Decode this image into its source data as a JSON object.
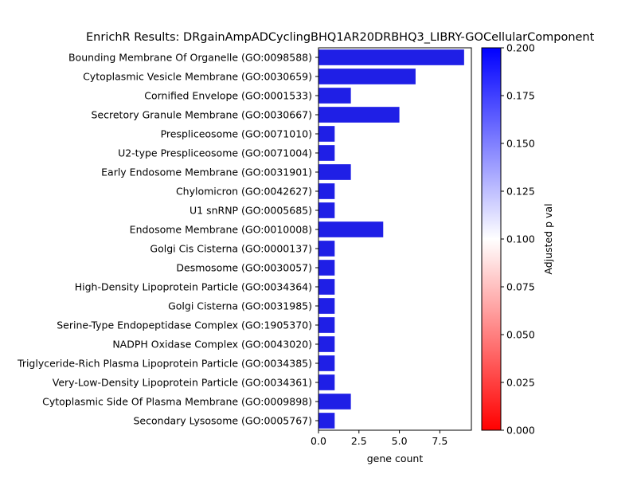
{
  "chart_data": {
    "type": "bar",
    "orientation": "horizontal",
    "title": "EnrichR Results: DRgainAmpADCyclingBHQ1AR20DRBHQ3_LIBRY-GOCellularComponent",
    "xlabel": "gene count",
    "ylabel": "",
    "xlim": [
      0,
      9.45
    ],
    "xticks": [
      0,
      2.5,
      5,
      7.5
    ],
    "xtick_labels": [
      "0.0",
      "2.5",
      "5.0",
      "7.5"
    ],
    "grid": false,
    "categories": [
      "Bounding Membrane Of Organelle (GO:0098588)",
      "Cytoplasmic Vesicle Membrane (GO:0030659)",
      "Cornified Envelope (GO:0001533)",
      "Secretory Granule Membrane (GO:0030667)",
      "Prespliceosome (GO:0071010)",
      "U2-type Prespliceosome (GO:0071004)",
      "Early Endosome Membrane (GO:0031901)",
      "Chylomicron (GO:0042627)",
      "U1 snRNP (GO:0005685)",
      "Endosome Membrane (GO:0010008)",
      "Golgi Cis Cisterna (GO:0000137)",
      "Desmosome (GO:0030057)",
      "High-Density Lipoprotein Particle (GO:0034364)",
      "Golgi Cisterna (GO:0031985)",
      "Serine-Type Endopeptidase Complex (GO:1905370)",
      "NADPH Oxidase Complex (GO:0043020)",
      "Triglyceride-Rich Plasma Lipoprotein Particle (GO:0034385)",
      "Very-Low-Density Lipoprotein Particle (GO:0034361)",
      "Cytoplasmic Side Of Plasma Membrane (GO:0009898)",
      "Secondary Lysosome (GO:0005767)"
    ],
    "values": [
      9,
      6,
      2,
      5,
      1,
      1,
      2,
      1,
      1,
      4,
      1,
      1,
      1,
      1,
      1,
      1,
      1,
      1,
      2,
      1
    ],
    "adjusted_p": [
      0.19,
      0.19,
      0.19,
      0.19,
      0.19,
      0.19,
      0.19,
      0.19,
      0.19,
      0.19,
      0.19,
      0.19,
      0.19,
      0.19,
      0.19,
      0.19,
      0.19,
      0.19,
      0.19,
      0.19
    ],
    "bar_color": "#1f1fe6",
    "colorbar": {
      "label": "Adjusted p val",
      "range": [
        0,
        0.2
      ],
      "ticks": [
        0,
        0.025,
        0.05,
        0.075,
        0.1,
        0.125,
        0.15,
        0.175,
        0.2
      ],
      "tick_labels": [
        "0.000",
        "0.025",
        "0.050",
        "0.075",
        "0.100",
        "0.125",
        "0.150",
        "0.175",
        "0.200"
      ],
      "colormap": [
        "#ff0000",
        "#ffffff",
        "#0000ff"
      ]
    }
  }
}
